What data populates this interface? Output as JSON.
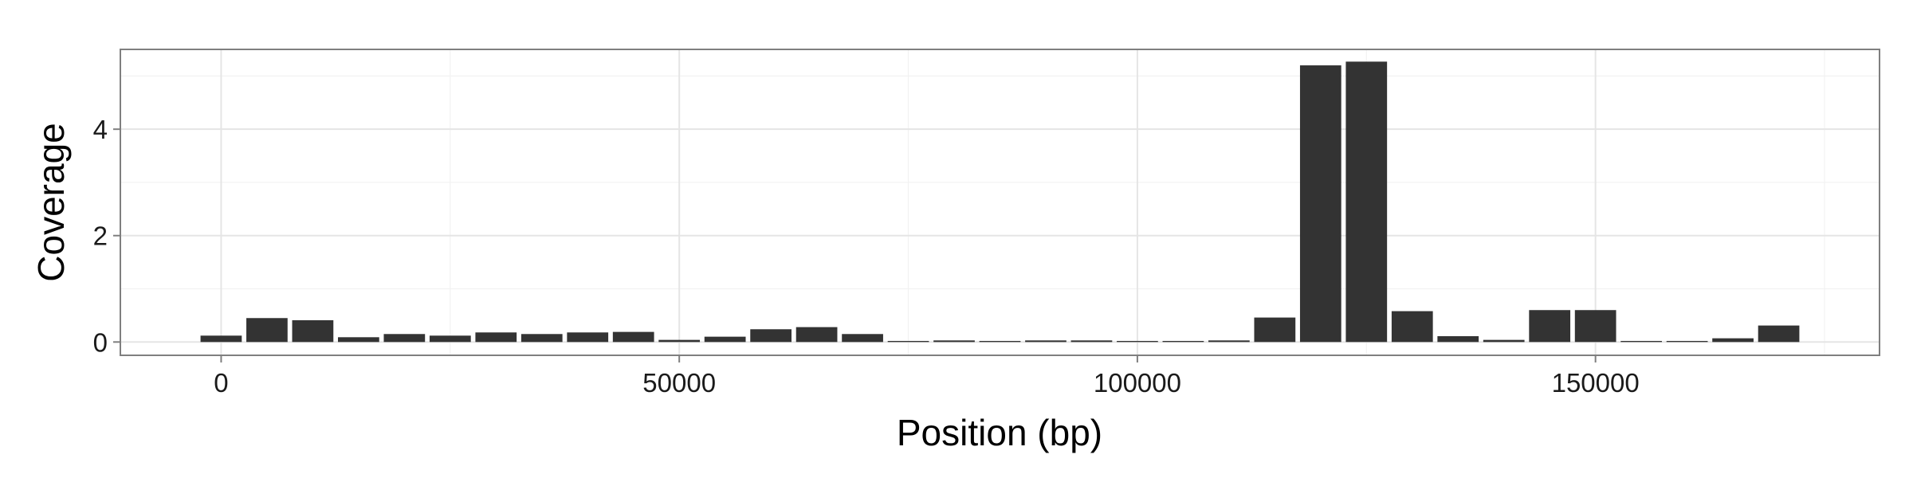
{
  "chart_data": {
    "type": "bar",
    "xlabel": "Position (bp)",
    "ylabel": "Coverage",
    "xlim": [
      -11000,
      181000
    ],
    "ylim": [
      -0.25,
      5.5
    ],
    "x_ticks": [
      0,
      50000,
      100000,
      150000
    ],
    "x_tick_labels": [
      "0",
      "50000",
      "100000",
      "150000"
    ],
    "y_ticks": [
      0,
      2,
      4
    ],
    "y_tick_labels": [
      "0",
      "2",
      "4"
    ],
    "grid": true,
    "bin_width": 5000,
    "bar_color": "#333333",
    "x": [
      0,
      5000,
      10000,
      15000,
      20000,
      25000,
      30000,
      35000,
      40000,
      45000,
      50000,
      55000,
      60000,
      65000,
      70000,
      75000,
      80000,
      85000,
      90000,
      95000,
      100000,
      105000,
      110000,
      115000,
      120000,
      125000,
      130000,
      135000,
      140000,
      145000,
      150000,
      155000,
      160000,
      165000,
      170000
    ],
    "values": [
      0.12,
      0.45,
      0.41,
      0.09,
      0.15,
      0.12,
      0.18,
      0.15,
      0.18,
      0.19,
      0.04,
      0.1,
      0.24,
      0.28,
      0.15,
      0.02,
      0.03,
      0.02,
      0.03,
      0.03,
      0.02,
      0.02,
      0.03,
      0.46,
      5.2,
      5.27,
      0.58,
      0.11,
      0.04,
      0.6,
      0.6,
      0.02,
      0.02,
      0.07,
      0.31
    ]
  }
}
